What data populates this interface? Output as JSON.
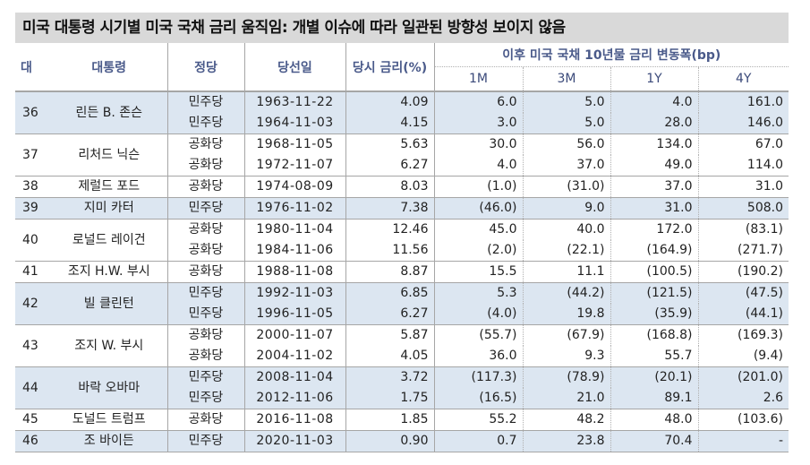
{
  "title": "미국 대통령 시기별 미국 국채 금리 움직임: 개별 이슈에 따라 일관된 방향성 보이지 않음",
  "headers": {
    "no": "대",
    "president": "대통령",
    "party": "정당",
    "election_date": "당선일",
    "rate": "당시 금리(%)",
    "change_group": "이후 미국 국채 10년물 금리 변동폭(bp)",
    "m1": "1M",
    "m3": "3M",
    "y1": "1Y",
    "y4": "4Y"
  },
  "groups": [
    {
      "no": "36",
      "name": "린든 B. 존슨",
      "shade": true,
      "rows": [
        {
          "party": "민주당",
          "date": "1963-11-22",
          "rate": "4.09",
          "m1": "6.0",
          "m3": "5.0",
          "y1": "4.0",
          "y4": "161.0"
        },
        {
          "party": "민주당",
          "date": "1964-11-03",
          "rate": "4.15",
          "m1": "3.0",
          "m3": "5.0",
          "y1": "28.0",
          "y4": "146.0"
        }
      ]
    },
    {
      "no": "37",
      "name": "리처드 닉슨",
      "shade": false,
      "rows": [
        {
          "party": "공화당",
          "date": "1968-11-05",
          "rate": "5.63",
          "m1": "30.0",
          "m3": "56.0",
          "y1": "134.0",
          "y4": "67.0"
        },
        {
          "party": "공화당",
          "date": "1972-11-07",
          "rate": "6.27",
          "m1": "4.0",
          "m3": "37.0",
          "y1": "49.0",
          "y4": "114.0"
        }
      ]
    },
    {
      "no": "38",
      "name": "제럴드 포드",
      "shade": false,
      "rows": [
        {
          "party": "공화당",
          "date": "1974-08-09",
          "rate": "8.03",
          "m1": "(1.0)",
          "m3": "(31.0)",
          "y1": "37.0",
          "y4": "31.0"
        }
      ]
    },
    {
      "no": "39",
      "name": "지미 카터",
      "shade": true,
      "rows": [
        {
          "party": "민주당",
          "date": "1976-11-02",
          "rate": "7.38",
          "m1": "(46.0)",
          "m3": "9.0",
          "y1": "31.0",
          "y4": "508.0"
        }
      ]
    },
    {
      "no": "40",
      "name": "로널드 레이건",
      "shade": false,
      "rows": [
        {
          "party": "공화당",
          "date": "1980-11-04",
          "rate": "12.46",
          "m1": "45.0",
          "m3": "40.0",
          "y1": "172.0",
          "y4": "(83.1)"
        },
        {
          "party": "공화당",
          "date": "1984-11-06",
          "rate": "11.56",
          "m1": "(2.0)",
          "m3": "(22.1)",
          "y1": "(164.9)",
          "y4": "(271.7)"
        }
      ]
    },
    {
      "no": "41",
      "name": "조지 H.W. 부시",
      "shade": false,
      "rows": [
        {
          "party": "공화당",
          "date": "1988-11-08",
          "rate": "8.87",
          "m1": "15.5",
          "m3": "11.1",
          "y1": "(100.5)",
          "y4": "(190.2)"
        }
      ]
    },
    {
      "no": "42",
      "name": "빌 클린턴",
      "shade": true,
      "rows": [
        {
          "party": "민주당",
          "date": "1992-11-03",
          "rate": "6.85",
          "m1": "5.3",
          "m3": "(44.2)",
          "y1": "(121.5)",
          "y4": "(47.5)"
        },
        {
          "party": "민주당",
          "date": "1996-11-05",
          "rate": "6.27",
          "m1": "(4.0)",
          "m3": "19.8",
          "y1": "(35.9)",
          "y4": "(44.1)"
        }
      ]
    },
    {
      "no": "43",
      "name": "조지 W. 부시",
      "shade": false,
      "rows": [
        {
          "party": "공화당",
          "date": "2000-11-07",
          "rate": "5.87",
          "m1": "(55.7)",
          "m3": "(67.9)",
          "y1": "(168.8)",
          "y4": "(169.3)"
        },
        {
          "party": "공화당",
          "date": "2004-11-02",
          "rate": "4.05",
          "m1": "36.0",
          "m3": "9.3",
          "y1": "55.7",
          "y4": "(9.4)"
        }
      ]
    },
    {
      "no": "44",
      "name": "바락 오바마",
      "shade": true,
      "rows": [
        {
          "party": "민주당",
          "date": "2008-11-04",
          "rate": "3.72",
          "m1": "(117.3)",
          "m3": "(78.9)",
          "y1": "(20.1)",
          "y4": "(201.0)"
        },
        {
          "party": "민주당",
          "date": "2012-11-06",
          "rate": "1.75",
          "m1": "(16.5)",
          "m3": "21.0",
          "y1": "89.1",
          "y4": "2.6"
        }
      ]
    },
    {
      "no": "45",
      "name": "도널드 트럼프",
      "shade": false,
      "rows": [
        {
          "party": "공화당",
          "date": "2016-11-08",
          "rate": "1.85",
          "m1": "55.2",
          "m3": "48.2",
          "y1": "48.0",
          "y4": "(103.6)"
        }
      ]
    },
    {
      "no": "46",
      "name": "조 바이든",
      "shade": true,
      "rows": [
        {
          "party": "민주당",
          "date": "2020-11-03",
          "rate": "0.90",
          "m1": "0.7",
          "m3": "23.8",
          "y1": "70.4",
          "y4": "-"
        }
      ]
    }
  ]
}
